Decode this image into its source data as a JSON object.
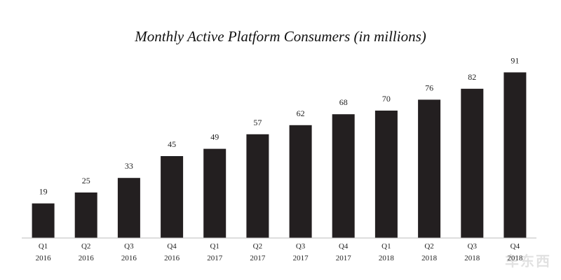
{
  "chart_data": {
    "type": "bar",
    "title": "Monthly Active Platform Consumers (in millions)",
    "xlabel": "",
    "ylabel": "",
    "categories": [
      [
        "Q1",
        "2016"
      ],
      [
        "Q2",
        "2016"
      ],
      [
        "Q3",
        "2016"
      ],
      [
        "Q4",
        "2016"
      ],
      [
        "Q1",
        "2017"
      ],
      [
        "Q2",
        "2017"
      ],
      [
        "Q3",
        "2017"
      ],
      [
        "Q4",
        "2017"
      ],
      [
        "Q1",
        "2018"
      ],
      [
        "Q2",
        "2018"
      ],
      [
        "Q3",
        "2018"
      ],
      [
        "Q4",
        "2018"
      ]
    ],
    "values": [
      19,
      25,
      33,
      45,
      49,
      57,
      62,
      68,
      70,
      76,
      82,
      91
    ],
    "ylim": [
      0,
      100
    ],
    "grid": false,
    "bar_color": "#231f20"
  },
  "watermark": "车东西"
}
